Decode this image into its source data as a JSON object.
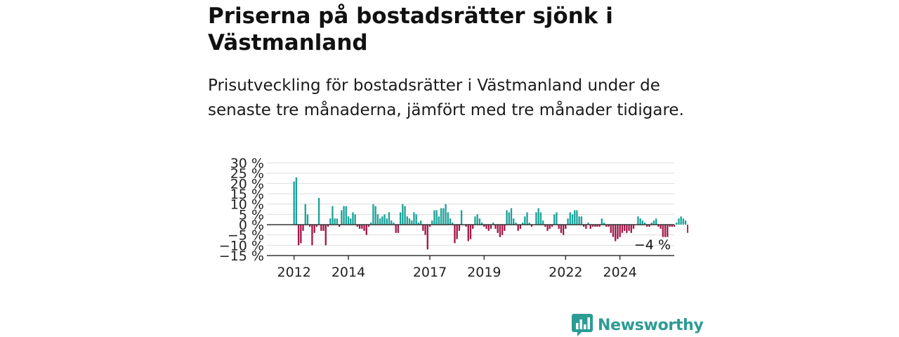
{
  "header": {
    "title": "Priserna på bostadsrätter sjönk i Västmanland",
    "subtitle": "Prisutveckling för bostadsrätter i Västmanland under de senaste tre månaderna, jämfört med tre månader tidigare."
  },
  "brand": {
    "name": "Newsworthy",
    "icon": "newsworthy-logo-icon",
    "color": "#2c9c94"
  },
  "colors": {
    "positive": "#1aa39a",
    "negative": "#a3174a",
    "grid": "#dddddd",
    "axis": "#333333",
    "zero_line": "#333333"
  },
  "chart_data": {
    "type": "bar",
    "title": "Priserna på bostadsrätter sjönk i Västmanland",
    "subtitle": "Prisutveckling för bostadsrätter i Västmanland under de senaste tre månaderna, jämfört med tre månader tidigare.",
    "xlabel": "",
    "ylabel": "",
    "x_range": [
      2011.0,
      2026.0
    ],
    "ylim": [
      -15,
      30
    ],
    "y_ticks": [
      30,
      25,
      20,
      15,
      10,
      5,
      0,
      -5,
      -10,
      -15
    ],
    "y_tick_labels": [
      "30 %",
      "25 %",
      "20 %",
      "15 %",
      "10 %",
      "5 %",
      "0 %",
      "−5 %",
      "−10 %",
      "−15 %"
    ],
    "x_ticks": [
      2012,
      2014,
      2017,
      2019,
      2022,
      2024
    ],
    "x_tick_labels": [
      "2012",
      "2014",
      "2017",
      "2019",
      "2022",
      "2024"
    ],
    "grid": true,
    "annotation": {
      "text": "−4 %",
      "value": -4
    },
    "series": [
      {
        "start": 2012.0,
        "step_months": 1,
        "values": [
          21,
          23,
          -10,
          -9,
          -3,
          10,
          5,
          -1,
          -10,
          -4,
          -1,
          13,
          -3,
          -3,
          -10,
          -1,
          3,
          9,
          3,
          3,
          -1,
          7,
          9,
          9,
          4,
          3,
          6,
          5,
          -1,
          -2,
          -2,
          -3,
          -5,
          -1,
          1,
          10,
          9,
          5,
          3,
          4,
          5,
          3,
          6,
          2,
          1,
          -4,
          -4,
          6,
          10,
          9,
          4,
          3,
          2,
          6,
          5,
          1,
          2,
          -3,
          -5,
          -12,
          -1,
          2,
          7,
          7,
          4,
          8,
          8,
          10,
          6,
          3,
          1,
          -9,
          -7,
          -3,
          7,
          0,
          -1,
          -8,
          -7,
          -2,
          4,
          5,
          3,
          1,
          -1,
          -2,
          -3,
          -2,
          1,
          -2,
          -4,
          -6,
          -5,
          -3,
          7,
          6,
          8,
          3,
          1,
          -3,
          -2,
          1,
          4,
          6,
          1,
          -1,
          0,
          6,
          8,
          6,
          2,
          -1,
          -3,
          -2,
          -1,
          5,
          6,
          -2,
          -4,
          -5,
          -2,
          3,
          6,
          5,
          7,
          7,
          4,
          4,
          -1,
          -2,
          1,
          -2,
          -1,
          -1,
          -1,
          -1,
          3,
          1,
          -1,
          -1,
          -4,
          -6,
          -8,
          -7,
          -6,
          -4,
          -3,
          -4,
          -3,
          -4,
          -2,
          0,
          4,
          3,
          2,
          1,
          -1,
          -1,
          1,
          2,
          3,
          -1,
          -2,
          -6,
          -6,
          -6,
          -1,
          -1,
          -1,
          1,
          3,
          4,
          3,
          2,
          -4
        ]
      }
    ]
  }
}
